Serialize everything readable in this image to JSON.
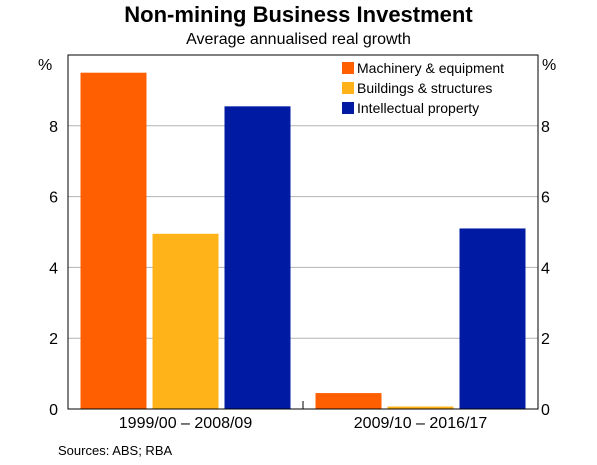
{
  "chart_data": {
    "type": "bar",
    "title": "Non-mining Business Investment",
    "subtitle": "Average annualised real growth",
    "ylabel_left": "%",
    "ylabel_right": "%",
    "ylim": [
      0,
      10
    ],
    "yticks": [
      0,
      2,
      4,
      6,
      8
    ],
    "grid": true,
    "legend_position": "top-right",
    "categories": [
      "1999/00 – 2008/09",
      "2009/10 – 2016/17"
    ],
    "series": [
      {
        "name": "Machinery & equipment",
        "color": "#ff5f00",
        "values": [
          9.5,
          0.45
        ]
      },
      {
        "name": "Buildings & structures",
        "color": "#ffb319",
        "values": [
          4.95,
          0.07
        ]
      },
      {
        "name": "Intellectual property",
        "color": "#001aa3",
        "values": [
          8.55,
          5.1
        ]
      }
    ],
    "sources": "Sources:   ABS; RBA"
  }
}
